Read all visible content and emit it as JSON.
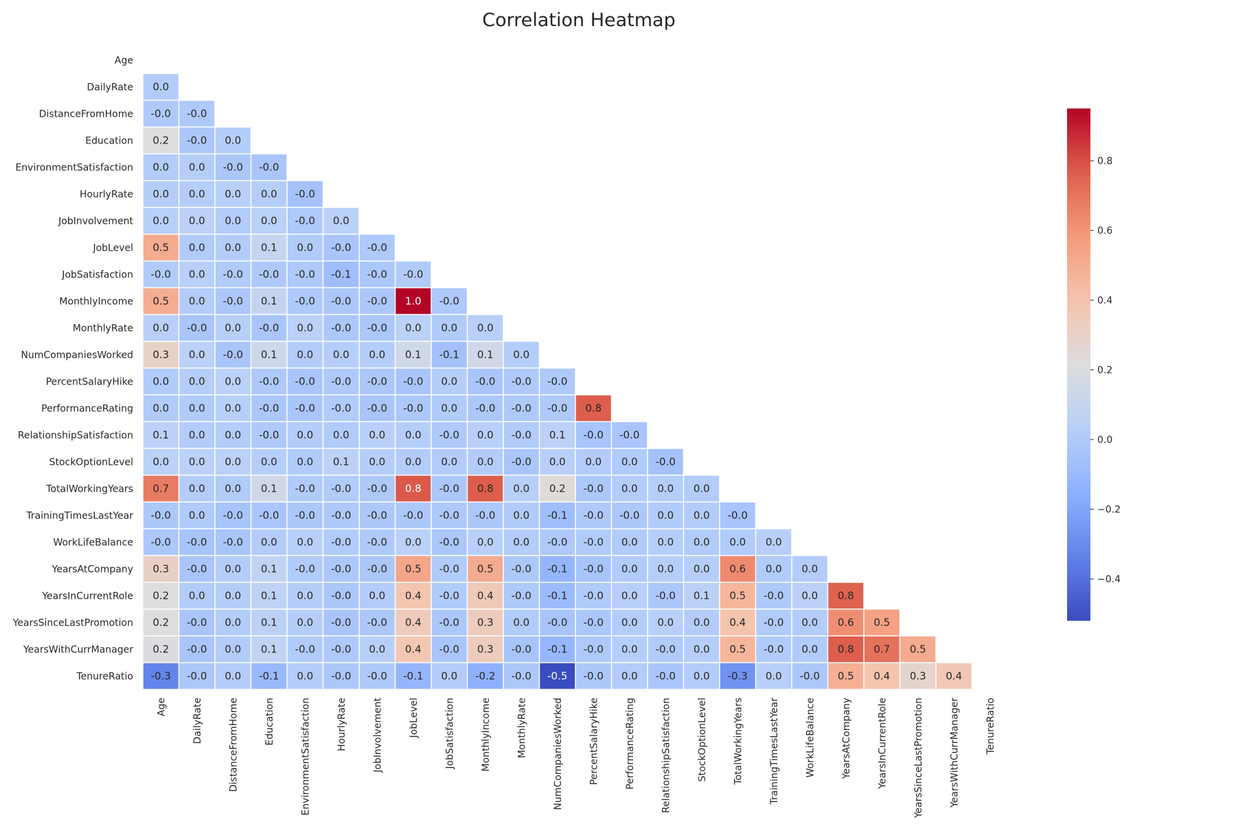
{
  "chart_data": {
    "type": "heatmap",
    "title": "Correlation Heatmap",
    "mask": "upper-triangle-including-diagonal",
    "colormap": "coolwarm",
    "labels": [
      "Age",
      "DailyRate",
      "DistanceFromHome",
      "Education",
      "EnvironmentSatisfaction",
      "HourlyRate",
      "JobInvolvement",
      "JobLevel",
      "JobSatisfaction",
      "MonthlyIncome",
      "MonthlyRate",
      "NumCompaniesWorked",
      "PercentSalaryHike",
      "PerformanceRating",
      "RelationshipSatisfaction",
      "StockOptionLevel",
      "TotalWorkingYears",
      "TrainingTimesLastYear",
      "WorkLifeBalance",
      "YearsAtCompany",
      "YearsInCurrentRole",
      "YearsSinceLastPromotion",
      "YearsWithCurrManager",
      "TenureRatio"
    ],
    "display_values": [
      [],
      [
        "0.0"
      ],
      [
        "-0.0",
        "-0.0"
      ],
      [
        "0.2",
        "-0.0",
        "0.0"
      ],
      [
        "0.0",
        "0.0",
        "-0.0",
        "-0.0"
      ],
      [
        "0.0",
        "0.0",
        "0.0",
        "0.0",
        "-0.0"
      ],
      [
        "0.0",
        "0.0",
        "0.0",
        "0.0",
        "-0.0",
        "0.0"
      ],
      [
        "0.5",
        "0.0",
        "0.0",
        "0.1",
        "0.0",
        "-0.0",
        "-0.0"
      ],
      [
        "-0.0",
        "0.0",
        "-0.0",
        "-0.0",
        "-0.0",
        "-0.1",
        "-0.0",
        "-0.0"
      ],
      [
        "0.5",
        "0.0",
        "-0.0",
        "0.1",
        "-0.0",
        "-0.0",
        "-0.0",
        "1.0",
        "-0.0"
      ],
      [
        "0.0",
        "-0.0",
        "0.0",
        "-0.0",
        "0.0",
        "-0.0",
        "-0.0",
        "0.0",
        "0.0",
        "0.0"
      ],
      [
        "0.3",
        "0.0",
        "-0.0",
        "0.1",
        "0.0",
        "0.0",
        "0.0",
        "0.1",
        "-0.1",
        "0.1",
        "0.0"
      ],
      [
        "0.0",
        "0.0",
        "0.0",
        "-0.0",
        "-0.0",
        "-0.0",
        "-0.0",
        "-0.0",
        "0.0",
        "-0.0",
        "-0.0",
        "-0.0"
      ],
      [
        "0.0",
        "0.0",
        "0.0",
        "-0.0",
        "-0.0",
        "-0.0",
        "-0.0",
        "-0.0",
        "0.0",
        "-0.0",
        "-0.0",
        "-0.0",
        "0.8"
      ],
      [
        "0.1",
        "0.0",
        "0.0",
        "-0.0",
        "0.0",
        "0.0",
        "0.0",
        "0.0",
        "-0.0",
        "0.0",
        "-0.0",
        "0.1",
        "-0.0",
        "-0.0"
      ],
      [
        "0.0",
        "0.0",
        "0.0",
        "0.0",
        "0.0",
        "0.1",
        "0.0",
        "0.0",
        "0.0",
        "0.0",
        "-0.0",
        "0.0",
        "0.0",
        "0.0",
        "-0.0"
      ],
      [
        "0.7",
        "0.0",
        "0.0",
        "0.1",
        "-0.0",
        "-0.0",
        "-0.0",
        "0.8",
        "-0.0",
        "0.8",
        "0.0",
        "0.2",
        "-0.0",
        "0.0",
        "0.0",
        "0.0"
      ],
      [
        "-0.0",
        "0.0",
        "-0.0",
        "-0.0",
        "-0.0",
        "-0.0",
        "-0.0",
        "-0.0",
        "-0.0",
        "-0.0",
        "0.0",
        "-0.1",
        "-0.0",
        "-0.0",
        "0.0",
        "0.0",
        "-0.0"
      ],
      [
        "-0.0",
        "-0.0",
        "-0.0",
        "0.0",
        "0.0",
        "-0.0",
        "-0.0",
        "0.0",
        "-0.0",
        "0.0",
        "0.0",
        "-0.0",
        "-0.0",
        "0.0",
        "0.0",
        "0.0",
        "0.0",
        "0.0"
      ],
      [
        "0.3",
        "-0.0",
        "0.0",
        "0.1",
        "-0.0",
        "-0.0",
        "-0.0",
        "0.5",
        "-0.0",
        "0.5",
        "-0.0",
        "-0.1",
        "-0.0",
        "0.0",
        "0.0",
        "0.0",
        "0.6",
        "0.0",
        "0.0"
      ],
      [
        "0.2",
        "0.0",
        "0.0",
        "0.1",
        "0.0",
        "-0.0",
        "0.0",
        "0.4",
        "-0.0",
        "0.4",
        "-0.0",
        "-0.1",
        "-0.0",
        "0.0",
        "-0.0",
        "0.1",
        "0.5",
        "-0.0",
        "0.0",
        "0.8"
      ],
      [
        "0.2",
        "-0.0",
        "0.0",
        "0.1",
        "0.0",
        "-0.0",
        "-0.0",
        "0.4",
        "-0.0",
        "0.3",
        "0.0",
        "-0.0",
        "-0.0",
        "0.0",
        "0.0",
        "0.0",
        "0.4",
        "-0.0",
        "0.0",
        "0.6",
        "0.5"
      ],
      [
        "0.2",
        "-0.0",
        "0.0",
        "0.1",
        "-0.0",
        "-0.0",
        "0.0",
        "0.4",
        "-0.0",
        "0.3",
        "-0.0",
        "-0.1",
        "-0.0",
        "0.0",
        "-0.0",
        "0.0",
        "0.5",
        "-0.0",
        "0.0",
        "0.8",
        "0.7",
        "0.5"
      ],
      [
        "-0.3",
        "-0.0",
        "0.0",
        "-0.1",
        "0.0",
        "-0.0",
        "-0.0",
        "-0.1",
        "0.0",
        "-0.2",
        "-0.0",
        "-0.5",
        "-0.0",
        "0.0",
        "-0.0",
        "0.0",
        "-0.3",
        "0.0",
        "-0.0",
        "0.5",
        "0.4",
        "0.3",
        "0.4"
      ]
    ],
    "values": [
      [],
      [
        0.01
      ],
      [
        -0.01,
        -0.01
      ],
      [
        0.21,
        -0.02,
        0.02
      ],
      [
        0.01,
        0.02,
        -0.02,
        -0.03
      ],
      [
        0.02,
        0.02,
        0.03,
        0.02,
        -0.05
      ],
      [
        0.03,
        0.05,
        0.01,
        0.04,
        -0.01,
        0.04
      ],
      [
        0.51,
        0.0,
        0.01,
        0.1,
        0.0,
        -0.03,
        -0.01
      ],
      [
        -0.0,
        0.03,
        -0.0,
        -0.01,
        -0.01,
        -0.07,
        -0.02,
        -0.0
      ],
      [
        0.5,
        0.01,
        -0.02,
        0.09,
        -0.01,
        -0.02,
        -0.02,
        0.95,
        -0.01
      ],
      [
        0.03,
        -0.03,
        0.03,
        -0.03,
        0.04,
        -0.02,
        -0.02,
        0.04,
        0.0,
        0.03
      ],
      [
        0.3,
        0.04,
        -0.03,
        0.13,
        0.01,
        0.02,
        0.02,
        0.14,
        -0.06,
        0.15,
        0.02
      ],
      [
        0.0,
        0.02,
        0.04,
        -0.01,
        -0.03,
        -0.01,
        -0.02,
        -0.03,
        0.02,
        -0.03,
        -0.01,
        -0.01
      ],
      [
        0.0,
        0.0,
        0.03,
        -0.02,
        -0.03,
        -0.0,
        -0.03,
        -0.02,
        0.0,
        -0.02,
        -0.01,
        -0.01,
        0.77
      ],
      [
        0.05,
        0.01,
        0.01,
        -0.01,
        0.01,
        0.0,
        0.03,
        0.02,
        -0.01,
        0.03,
        -0.0,
        0.05,
        -0.04,
        -0.03
      ],
      [
        0.04,
        0.04,
        0.04,
        0.02,
        0.0,
        0.05,
        0.02,
        0.01,
        0.01,
        0.01,
        -0.03,
        0.03,
        0.01,
        0.0,
        -0.05
      ],
      [
        0.68,
        0.01,
        0.0,
        0.15,
        -0.0,
        -0.0,
        -0.01,
        0.78,
        -0.02,
        0.77,
        0.03,
        0.24,
        -0.02,
        0.01,
        0.02,
        0.01
      ],
      [
        -0.02,
        0.0,
        -0.04,
        -0.03,
        -0.02,
        -0.01,
        -0.02,
        -0.02,
        -0.01,
        -0.02,
        0.0,
        -0.07,
        -0.01,
        -0.02,
        0.0,
        0.01,
        -0.04
      ],
      [
        -0.02,
        -0.04,
        -0.03,
        0.01,
        0.03,
        -0.0,
        -0.01,
        0.04,
        -0.02,
        0.03,
        0.01,
        -0.01,
        -0.0,
        0.0,
        0.02,
        0.0,
        0.0,
        0.03
      ],
      [
        0.31,
        -0.03,
        0.01,
        0.07,
        0.0,
        -0.02,
        -0.02,
        0.53,
        -0.0,
        0.51,
        -0.02,
        -0.12,
        -0.04,
        0.0,
        0.02,
        0.02,
        0.63,
        0.0,
        0.01
      ],
      [
        0.21,
        0.01,
        0.02,
        0.06,
        0.02,
        -0.02,
        0.01,
        0.39,
        -0.0,
        0.36,
        -0.01,
        -0.09,
        -0.0,
        0.03,
        -0.02,
        0.05,
        0.46,
        -0.01,
        0.05,
        0.76
      ],
      [
        0.22,
        -0.03,
        0.01,
        0.05,
        0.02,
        -0.03,
        -0.02,
        0.35,
        -0.02,
        0.34,
        0.0,
        -0.04,
        -0.02,
        0.02,
        0.03,
        0.01,
        0.4,
        -0.0,
        0.01,
        0.62,
        0.55
      ],
      [
        0.2,
        -0.03,
        0.01,
        0.07,
        -0.0,
        -0.01,
        0.03,
        0.38,
        -0.03,
        0.34,
        -0.04,
        -0.11,
        -0.01,
        0.02,
        -0.0,
        0.02,
        0.46,
        -0.0,
        0.0,
        0.77,
        0.71,
        0.51
      ],
      [
        -0.33,
        -0.02,
        0.01,
        -0.1,
        0.01,
        -0.02,
        -0.01,
        -0.12,
        0.01,
        -0.15,
        -0.02,
        -0.53,
        -0.02,
        0.01,
        -0.03,
        0.01,
        -0.27,
        0.03,
        -0.02,
        0.49,
        0.4,
        0.28,
        0.37
      ]
    ],
    "colorbar": {
      "vmin": -0.52,
      "vmax": 0.95,
      "ticks": [
        -0.4,
        -0.2,
        0.0,
        0.2,
        0.4,
        0.6,
        0.8
      ],
      "tick_labels": [
        "−0.4",
        "−0.2",
        "0.0",
        "0.2",
        "0.4",
        "0.6",
        "0.8"
      ]
    }
  }
}
